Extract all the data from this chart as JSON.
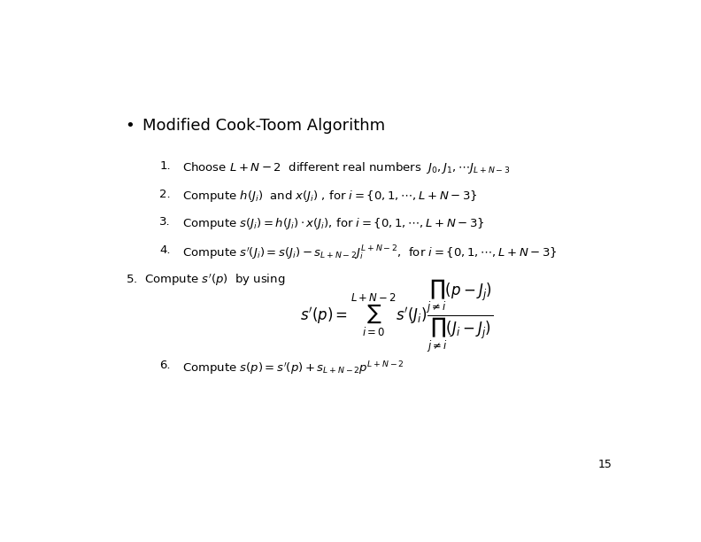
{
  "bg_color": "#ffffff",
  "title": "Modified Cook-Toom Algorithm",
  "bullet": "•",
  "page_number": "15",
  "items": [
    {
      "num": "1.",
      "text": "Choose $L+N-2$  different real numbers  $\\mathit{J}_0, \\mathit{J}_1, \\cdots\\mathit{J}_{L+N-3}$"
    },
    {
      "num": "2.",
      "text": "Compute $h(\\mathit{J}_i)$  and $x(\\mathit{J}_i)$ , for $i =\\{0,1,\\cdots,L+N-3\\}$"
    },
    {
      "num": "3.",
      "text": "Compute $s(\\mathit{J}_i) = h(\\mathit{J}_i)\\cdot x(\\mathit{J}_i)$, for $i = \\{0,1,\\cdots,L+N-3\\}$"
    },
    {
      "num": "4.",
      "text": "Compute $s'(\\mathit{J}_i) = s(\\mathit{J}_i) - s_{L+N-2}\\mathit{J}_i^{L+N-2}$,  for $i = \\{0,1,\\cdots,L+N-3\\}$"
    }
  ],
  "item5_prefix": "5.  Compute $s'(p)$  by using",
  "item6_num": "6.",
  "item6_text": "Compute $s(p) = s'(p) + s_{L+N-2}p^{L+N-2}$"
}
